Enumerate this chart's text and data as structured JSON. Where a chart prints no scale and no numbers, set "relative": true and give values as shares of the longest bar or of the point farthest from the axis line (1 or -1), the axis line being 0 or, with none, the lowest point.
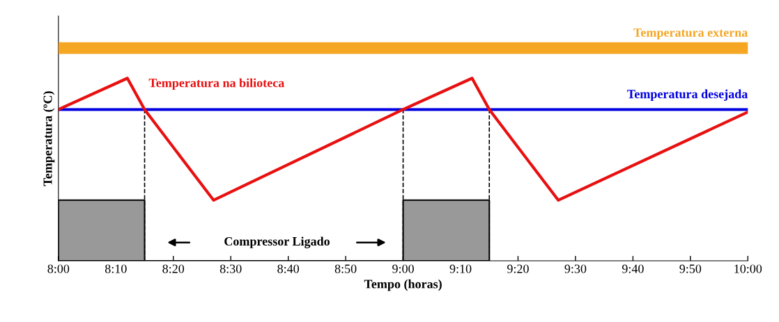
{
  "chart_data": {
    "type": "line",
    "relative": true,
    "xlabel": "Tempo (horas)",
    "ylabel": "Temperatura (ºC)",
    "xlim": [
      8,
      10
    ],
    "xticks": [
      {
        "value": 8,
        "label": "8:00"
      },
      {
        "value": 8.1667,
        "label": "8:10"
      },
      {
        "value": 8.3333,
        "label": "8:20"
      },
      {
        "value": 8.5,
        "label": "8:30"
      },
      {
        "value": 8.6667,
        "label": "8:40"
      },
      {
        "value": 8.8333,
        "label": "8:50"
      },
      {
        "value": 9,
        "label": "9:00"
      },
      {
        "value": 9.1667,
        "label": "9:10"
      },
      {
        "value": 9.3333,
        "label": "9:20"
      },
      {
        "value": 9.5,
        "label": "9:30"
      },
      {
        "value": 9.6667,
        "label": "9:40"
      },
      {
        "value": 9.8333,
        "label": "9:50"
      },
      {
        "value": 10,
        "label": "10:00"
      }
    ],
    "series": [
      {
        "type": "area",
        "color": "#999999",
        "x": [
          8,
          8,
          8.25,
          8.25,
          9,
          9,
          9.25,
          9.25
        ],
        "values": [
          0,
          0.285,
          0.285,
          0,
          0,
          0.285,
          0.285,
          0
        ]
      },
      {
        "name": "Temperatura externa",
        "color": "#f5a623",
        "x": [
          8,
          10
        ],
        "values": [
          1,
          1
        ]
      },
      {
        "name": "Temperatura desejada",
        "color": "#0000e0",
        "x": [
          8,
          10
        ],
        "values": [
          0.711,
          0.711
        ]
      },
      {
        "name": "Temperatura na bilioteca",
        "color": "#e81010",
        "x": [
          8,
          8.2,
          8.25,
          8.45,
          9,
          9.2,
          9.25,
          9.45,
          10
        ],
        "values": [
          0.711,
          0.858,
          0.711,
          0.285,
          0.711,
          0.858,
          0.711,
          0.285,
          0.699
        ]
      }
    ],
    "ref_lines": [
      {
        "axis": "x",
        "value": 8.25,
        "color": "#000000",
        "line_style": "dashed"
      },
      {
        "axis": "x",
        "value": 9,
        "color": "#000000",
        "line_style": "dashed"
      },
      {
        "axis": "x",
        "value": 9.25,
        "color": "#000000",
        "line_style": "dashed"
      }
    ],
    "annotations": [
      "Compressor Ligado"
    ]
  }
}
